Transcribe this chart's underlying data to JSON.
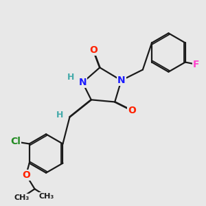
{
  "bg_color": "#e8e8e8",
  "bond_color": "#1a1a1a",
  "atom_colors": {
    "N": "#1a1aff",
    "O": "#ff2200",
    "Cl": "#228b22",
    "F": "#ff44cc",
    "H": "#44aaaa",
    "C": "#1a1a1a"
  },
  "font_size": 10,
  "fig_size": [
    3.0,
    3.0
  ],
  "dpi": 100
}
